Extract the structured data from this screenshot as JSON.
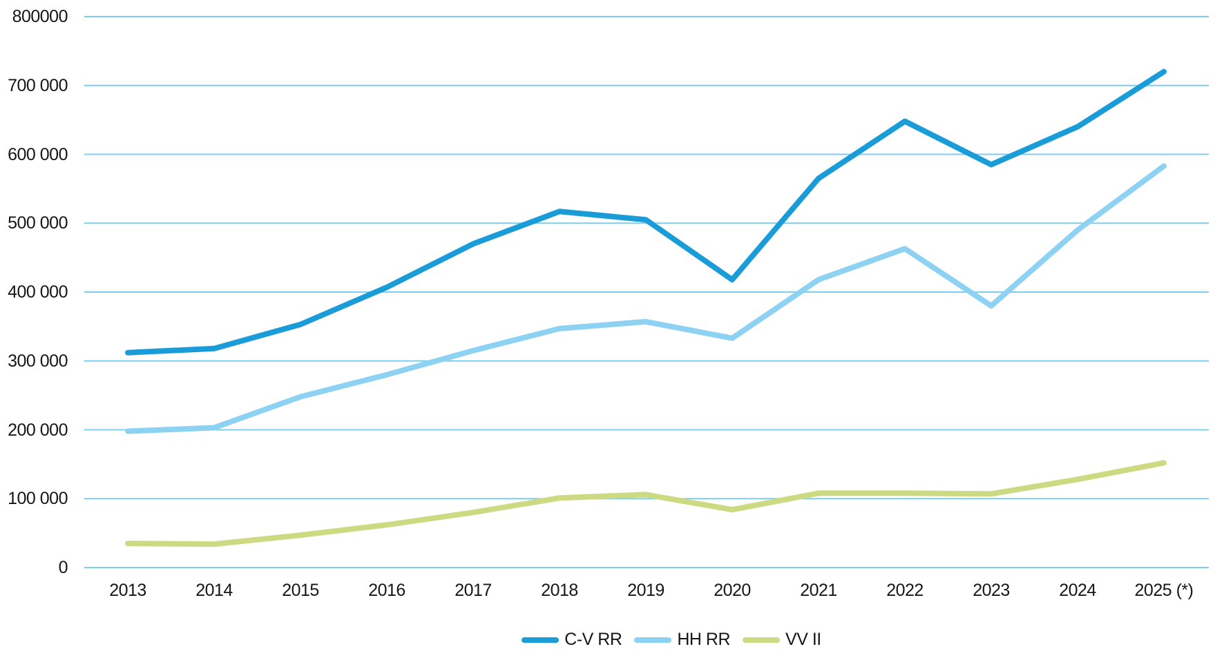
{
  "chart_data": {
    "type": "line",
    "x": [
      "2013",
      "2014",
      "2015",
      "2016",
      "2017",
      "2018",
      "2019",
      "2020",
      "2021",
      "2022",
      "2023",
      "2024",
      "2025 (*)"
    ],
    "series": [
      {
        "name": "C-V RR",
        "color": "#1a9cd8",
        "values": [
          312000,
          318000,
          353000,
          407000,
          470000,
          517000,
          505000,
          418000,
          565000,
          648000,
          585000,
          640000,
          720000
        ]
      },
      {
        "name": "HH RR",
        "color": "#8dd2f2",
        "values": [
          198000,
          203000,
          248000,
          280000,
          315000,
          347000,
          357000,
          333000,
          418000,
          463000,
          380000,
          490000,
          583000
        ]
      },
      {
        "name": "VV II",
        "color": "#cdda82",
        "values": [
          35000,
          34000,
          47000,
          62000,
          80000,
          101000,
          106000,
          84000,
          108000,
          108000,
          107000,
          128000,
          152000
        ]
      }
    ],
    "title": "",
    "xlabel": "",
    "ylabel": "",
    "ylim": [
      0,
      800000
    ],
    "y_tick_step": 100000,
    "y_tick_labels": [
      "0",
      "100 000",
      "200 000",
      "300 000",
      "400 000",
      "500 000",
      "600 000",
      "700 000",
      "800000"
    ],
    "grid": "horizontal",
    "gridline_color": "#7ccdee",
    "legend_position": "bottom",
    "background_color": "#ffffff",
    "text_color": "#161616"
  }
}
